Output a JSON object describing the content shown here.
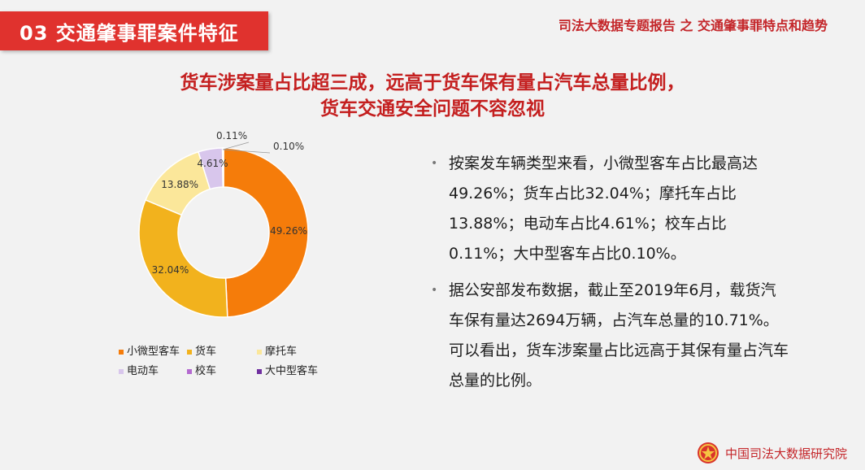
{
  "section": {
    "title": "03  交通肇事罪案件特征"
  },
  "report_title": "司法大数据专题报告 之 交通肇事罪特点和趋势",
  "headline": {
    "line1": "货车涉案量占比超三成，远高于货车保有量占汽车总量比例，",
    "line2": "货车交通安全问题不容忽视"
  },
  "chart_data": {
    "type": "pie",
    "subtype": "donut",
    "categories": [
      "小微型客车",
      "货车",
      "摩托车",
      "电动车",
      "校车",
      "大中型客车"
    ],
    "values": [
      49.26,
      32.04,
      13.88,
      4.61,
      0.11,
      0.1
    ],
    "data_labels": [
      "49.26%",
      "32.04%",
      "13.88%",
      "4.61%",
      "0.11%",
      "0.10%"
    ],
    "colors": [
      "#f57c0a",
      "#f2b21d",
      "#fbe79a",
      "#d8c6ec",
      "#b46ad0",
      "#7030a0"
    ],
    "legend_position": "bottom"
  },
  "bullets": [
    "按案发车辆类型来看，小微型客车占比最高达49.26%；货车占比32.04%；摩托车占比13.88%；电动车占比4.61%；校车占比0.11%；大中型客车占比0.10%。",
    "据公安部发布数据，截止至2019年6月，载货汽车保有量达2694万辆，占汽车总量的10.71%。可以看出，货车涉案量占比远高于其保有量占汽车总量的比例。"
  ],
  "footer": {
    "org": "中国司法大数据研究院",
    "logo_icon": "court-emblem-icon"
  }
}
